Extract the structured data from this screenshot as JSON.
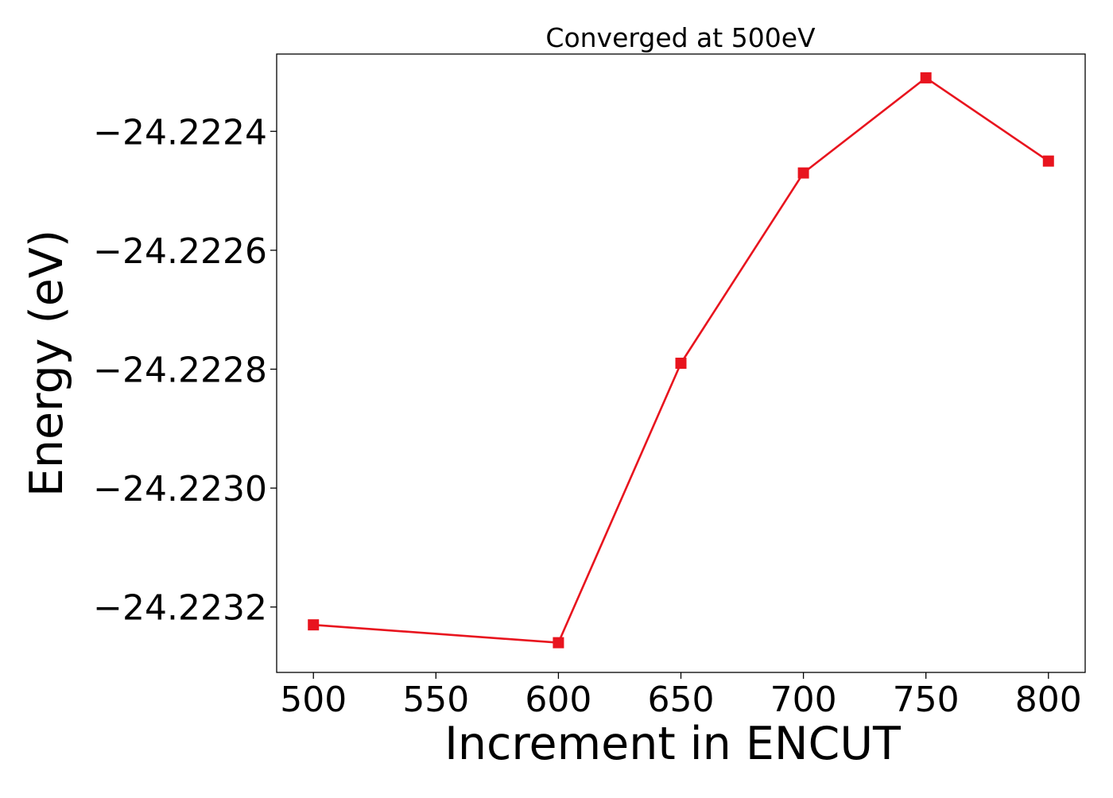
{
  "chart_data": {
    "type": "line",
    "title": "Converged at 500eV",
    "xlabel": "Increment in ENCUT",
    "ylabel": "Energy (eV)",
    "xlim": [
      485,
      815
    ],
    "ylim": [
      -24.22331,
      -24.22227
    ],
    "xticks": [
      500,
      550,
      600,
      650,
      700,
      750,
      800
    ],
    "xtick_labels": [
      "500",
      "550",
      "600",
      "650",
      "700",
      "750",
      "800"
    ],
    "yticks": [
      -24.2224,
      -24.2226,
      -24.2228,
      -24.223,
      -24.2232
    ],
    "ytick_labels": [
      "−24.2224",
      "−24.2226",
      "−24.2228",
      "−24.2230",
      "−24.2232"
    ],
    "grid": false,
    "legend": "none",
    "series": [
      {
        "marker": "square",
        "color": "#e8141e",
        "x": [
          500,
          600,
          650,
          700,
          750,
          800
        ],
        "y": [
          -24.22323,
          -24.22326,
          -24.22279,
          -24.22247,
          -24.22231,
          -24.22245
        ]
      }
    ]
  }
}
